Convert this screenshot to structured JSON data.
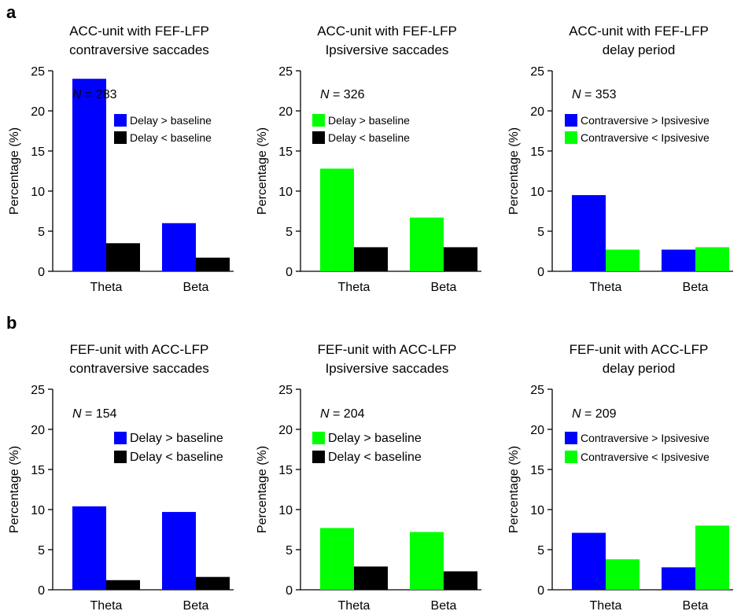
{
  "panel_labels": [
    "a",
    "b"
  ],
  "colors": {
    "blue": "#0000ff",
    "green": "#00ff00",
    "black": "#000000"
  },
  "chart_data": [
    {
      "type": "bar",
      "row": 0,
      "col": 0,
      "title": [
        "ACC-unit with FEF-LFP",
        "contraversive saccades"
      ],
      "n_italic": "N",
      "n_value": " = 283",
      "categories": [
        "Theta",
        "Beta"
      ],
      "ylabel": "Percentage (%)",
      "ylim": [
        0,
        25
      ],
      "yticks": [
        0,
        5,
        10,
        15,
        20,
        25
      ],
      "series": [
        {
          "name": "Delay > baseline",
          "color": "#0000ff",
          "values": [
            24.0,
            6.0
          ]
        },
        {
          "name": "Delay < baseline",
          "color": "#000000",
          "values": [
            3.5,
            1.7
          ]
        }
      ]
    },
    {
      "type": "bar",
      "row": 0,
      "col": 1,
      "title": [
        "ACC-unit with FEF-LFP",
        "Ipsiversive saccades"
      ],
      "n_italic": "N",
      "n_value": " = 326",
      "categories": [
        "Theta",
        "Beta"
      ],
      "ylabel": "Percentage (%)",
      "ylim": [
        0,
        25
      ],
      "yticks": [
        0,
        5,
        10,
        15,
        20,
        25
      ],
      "series": [
        {
          "name": "Delay > baseline",
          "color": "#00ff00",
          "values": [
            12.8,
            6.7
          ]
        },
        {
          "name": "Delay < baseline",
          "color": "#000000",
          "values": [
            3.0,
            3.0
          ]
        }
      ]
    },
    {
      "type": "bar",
      "row": 0,
      "col": 2,
      "title": [
        "ACC-unit with FEF-LFP",
        "delay period"
      ],
      "n_italic": "N",
      "n_value": " = 353",
      "categories": [
        "Theta",
        "Beta"
      ],
      "ylabel": "Percentage (%)",
      "ylim": [
        0,
        25
      ],
      "yticks": [
        0,
        5,
        10,
        15,
        20,
        25
      ],
      "series": [
        {
          "name": "Contraversive > Ipsivesive",
          "color": "#0000ff",
          "values": [
            9.5,
            2.7
          ]
        },
        {
          "name": "Contraversive < Ipsivesive",
          "color": "#00ff00",
          "values": [
            2.7,
            3.0
          ]
        }
      ]
    },
    {
      "type": "bar",
      "row": 1,
      "col": 0,
      "title": [
        "FEF-unit with ACC-LFP",
        "contraversive saccades"
      ],
      "n_italic": "N",
      "n_value": " = 154",
      "categories": [
        "Theta",
        "Beta"
      ],
      "ylabel": "Percentage (%)",
      "ylim": [
        0,
        25
      ],
      "yticks": [
        0,
        5,
        10,
        15,
        20,
        25
      ],
      "series": [
        {
          "name": "Delay > baseline",
          "color": "#0000ff",
          "values": [
            10.4,
            9.7
          ]
        },
        {
          "name": "Delay < baseline",
          "color": "#000000",
          "values": [
            1.2,
            1.6
          ]
        }
      ]
    },
    {
      "type": "bar",
      "row": 1,
      "col": 1,
      "title": [
        "FEF-unit with ACC-LFP",
        "Ipsiversive saccades"
      ],
      "n_italic": "N",
      "n_value": " = 204",
      "categories": [
        "Theta",
        "Beta"
      ],
      "ylabel": "Percentage (%)",
      "ylim": [
        0,
        25
      ],
      "yticks": [
        0,
        5,
        10,
        15,
        20,
        25
      ],
      "series": [
        {
          "name": "Delay > baseline",
          "color": "#00ff00",
          "values": [
            7.7,
            7.2
          ]
        },
        {
          "name": "Delay < baseline",
          "color": "#000000",
          "values": [
            2.9,
            2.3
          ]
        }
      ]
    },
    {
      "type": "bar",
      "row": 1,
      "col": 2,
      "title": [
        "FEF-unit with ACC-LFP",
        "delay period"
      ],
      "n_italic": "N",
      "n_value": " = 209",
      "categories": [
        "Theta",
        "Beta"
      ],
      "ylabel": "Percentage (%)",
      "ylim": [
        0,
        25
      ],
      "yticks": [
        0,
        5,
        10,
        15,
        20,
        25
      ],
      "series": [
        {
          "name": "Contraversive > Ipsivesive",
          "color": "#0000ff",
          "values": [
            7.1,
            2.8
          ]
        },
        {
          "name": "Contraversive < Ipsivesive",
          "color": "#00ff00",
          "values": [
            3.8,
            8.0
          ]
        }
      ]
    }
  ]
}
